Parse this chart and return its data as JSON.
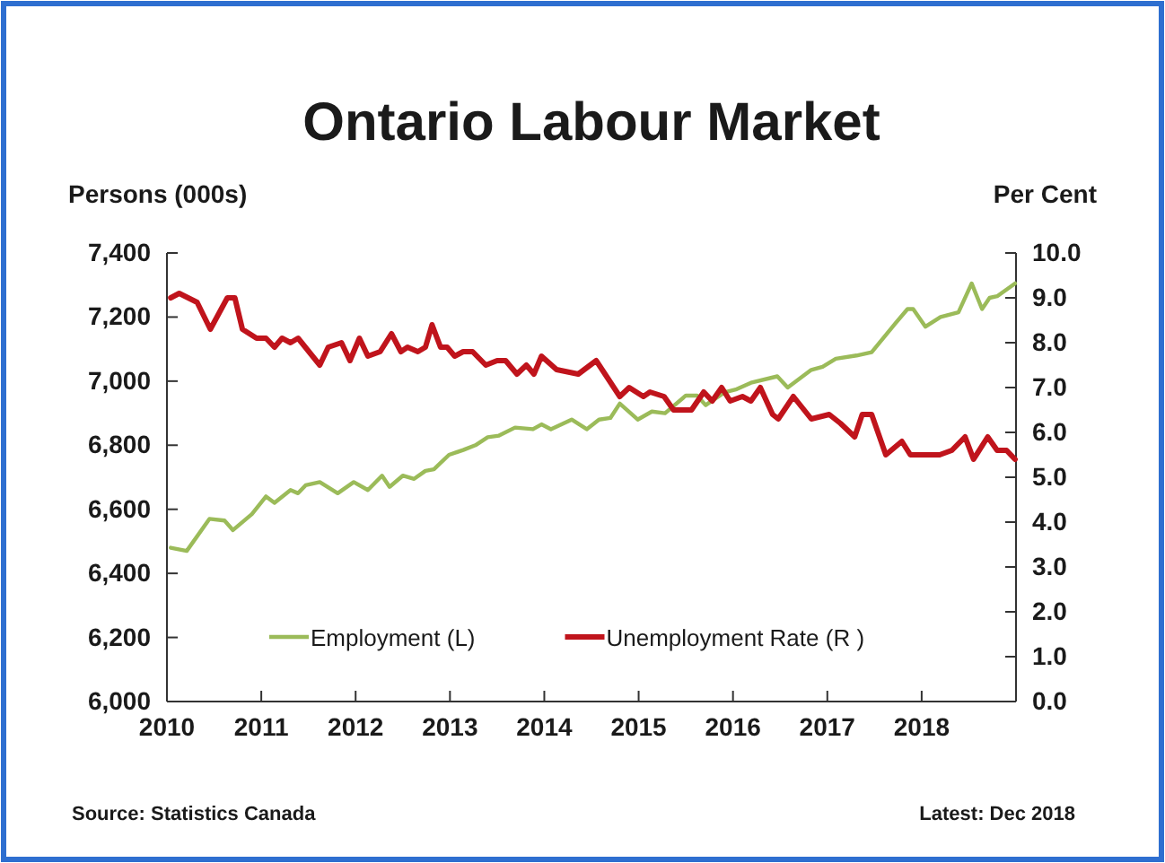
{
  "chart_data": {
    "type": "line",
    "title": "Ontario Labour Market",
    "ylabel": "Persons (000s)",
    "y2label": "Per Cent",
    "annotations": [
      "Source: Statistics Canada",
      "Latest: Dec 2018"
    ],
    "xlim": [
      2010,
      2019
    ],
    "xticks": [
      2010,
      2011,
      2012,
      2013,
      2014,
      2015,
      2016,
      2017,
      2018
    ],
    "ylim": [
      6000,
      7400
    ],
    "yticks": [
      {
        "value": 6000,
        "label": "6,000"
      },
      {
        "value": 6200,
        "label": "6,200"
      },
      {
        "value": 6400,
        "label": "6,400"
      },
      {
        "value": 6600,
        "label": "6,600"
      },
      {
        "value": 6800,
        "label": "6,800"
      },
      {
        "value": 7000,
        "label": "7,000"
      },
      {
        "value": 7200,
        "label": "7,200"
      },
      {
        "value": 7400,
        "label": "7,400"
      }
    ],
    "y2lim": [
      0,
      10
    ],
    "y2ticks": [
      {
        "value": 0,
        "label": "0.0"
      },
      {
        "value": 1,
        "label": "1.0"
      },
      {
        "value": 2,
        "label": "2.0"
      },
      {
        "value": 3,
        "label": "3.0"
      },
      {
        "value": 4,
        "label": "4.0"
      },
      {
        "value": 5,
        "label": "5.0"
      },
      {
        "value": 6,
        "label": "6.0"
      },
      {
        "value": 7,
        "label": "7.0"
      },
      {
        "value": 8,
        "label": "8.0"
      },
      {
        "value": 9,
        "label": "9.0"
      },
      {
        "value": 10,
        "label": "10.0"
      }
    ],
    "legend": "bottom",
    "grid": false,
    "marker": "none",
    "line_style": "solid",
    "series": [
      {
        "name": "Employment (L)",
        "color": "#9bbb59",
        "x": [
          2010.04,
          2010.21,
          2010.45,
          2010.61,
          2010.7,
          2010.9,
          2011.05,
          2011.14,
          2011.31,
          2011.39,
          2011.47,
          2011.62,
          2011.81,
          2011.98,
          2012.13,
          2012.28,
          2012.36,
          2012.5,
          2012.62,
          2012.74,
          2012.83,
          2012.99,
          2013.14,
          2013.27,
          2013.4,
          2013.52,
          2013.69,
          2013.88,
          2013.97,
          2014.07,
          2014.29,
          2014.45,
          2014.58,
          2014.7,
          2014.8,
          2014.99,
          2015.14,
          2015.28,
          2015.5,
          2015.62,
          2015.71,
          2015.91,
          2016.04,
          2016.19,
          2016.47,
          2016.58,
          2016.83,
          2016.95,
          2017.09,
          2017.31,
          2017.47,
          2017.72,
          2017.85,
          2017.91,
          2018.04,
          2018.2,
          2018.39,
          2018.53,
          2018.64,
          2018.72,
          2018.8,
          2018.99
        ],
        "values": [
          6480,
          6470,
          6570,
          6565,
          6535,
          6585,
          6640,
          6620,
          6660,
          6650,
          6675,
          6685,
          6650,
          6685,
          6660,
          6705,
          6670,
          6705,
          6695,
          6720,
          6725,
          6770,
          6785,
          6800,
          6825,
          6830,
          6855,
          6850,
          6865,
          6850,
          6880,
          6850,
          6880,
          6885,
          6930,
          6880,
          6905,
          6900,
          6955,
          6955,
          6925,
          6965,
          6975,
          6995,
          7015,
          6980,
          7035,
          7045,
          7070,
          7080,
          7090,
          7180,
          7225,
          7225,
          7170,
          7200,
          7215,
          7305,
          7225,
          7260,
          7265,
          7305
        ]
      },
      {
        "name": "Unemployment Rate (R )",
        "color": "#c0141c",
        "axis": "y2",
        "x": [
          2010.04,
          2010.13,
          2010.32,
          2010.46,
          2010.64,
          2010.72,
          2010.8,
          2010.95,
          2011.05,
          2011.14,
          2011.22,
          2011.31,
          2011.39,
          2011.62,
          2011.71,
          2011.85,
          2011.94,
          2012.04,
          2012.13,
          2012.26,
          2012.38,
          2012.48,
          2012.55,
          2012.66,
          2012.74,
          2012.81,
          2012.9,
          2012.97,
          2013.05,
          2013.14,
          2013.24,
          2013.38,
          2013.5,
          2013.59,
          2013.71,
          2013.81,
          2013.89,
          2013.97,
          2014.13,
          2014.36,
          2014.55,
          2014.8,
          2014.9,
          2015.05,
          2015.12,
          2015.27,
          2015.37,
          2015.56,
          2015.69,
          2015.78,
          2015.88,
          2015.97,
          2016.1,
          2016.19,
          2016.29,
          2016.42,
          2016.48,
          2016.64,
          2016.83,
          2017.02,
          2017.14,
          2017.29,
          2017.37,
          2017.47,
          2017.62,
          2017.79,
          2017.88,
          2018.07,
          2018.19,
          2018.32,
          2018.46,
          2018.55,
          2018.7,
          2018.8,
          2018.9,
          2018.99
        ],
        "values": [
          9.0,
          9.1,
          8.9,
          8.3,
          9.0,
          9.0,
          8.3,
          8.1,
          8.1,
          7.9,
          8.1,
          8.0,
          8.1,
          7.5,
          7.9,
          8.0,
          7.6,
          8.1,
          7.7,
          7.8,
          8.2,
          7.8,
          7.9,
          7.8,
          7.9,
          8.4,
          7.9,
          7.9,
          7.7,
          7.8,
          7.8,
          7.5,
          7.6,
          7.6,
          7.3,
          7.5,
          7.3,
          7.7,
          7.4,
          7.3,
          7.6,
          6.8,
          7.0,
          6.8,
          6.9,
          6.8,
          6.5,
          6.5,
          6.9,
          6.7,
          7.0,
          6.7,
          6.8,
          6.7,
          7.0,
          6.4,
          6.3,
          6.8,
          6.3,
          6.4,
          6.2,
          5.9,
          6.4,
          6.4,
          5.5,
          5.8,
          5.5,
          5.5,
          5.5,
          5.6,
          5.9,
          5.4,
          5.9,
          5.6,
          5.6,
          5.4
        ]
      }
    ]
  }
}
